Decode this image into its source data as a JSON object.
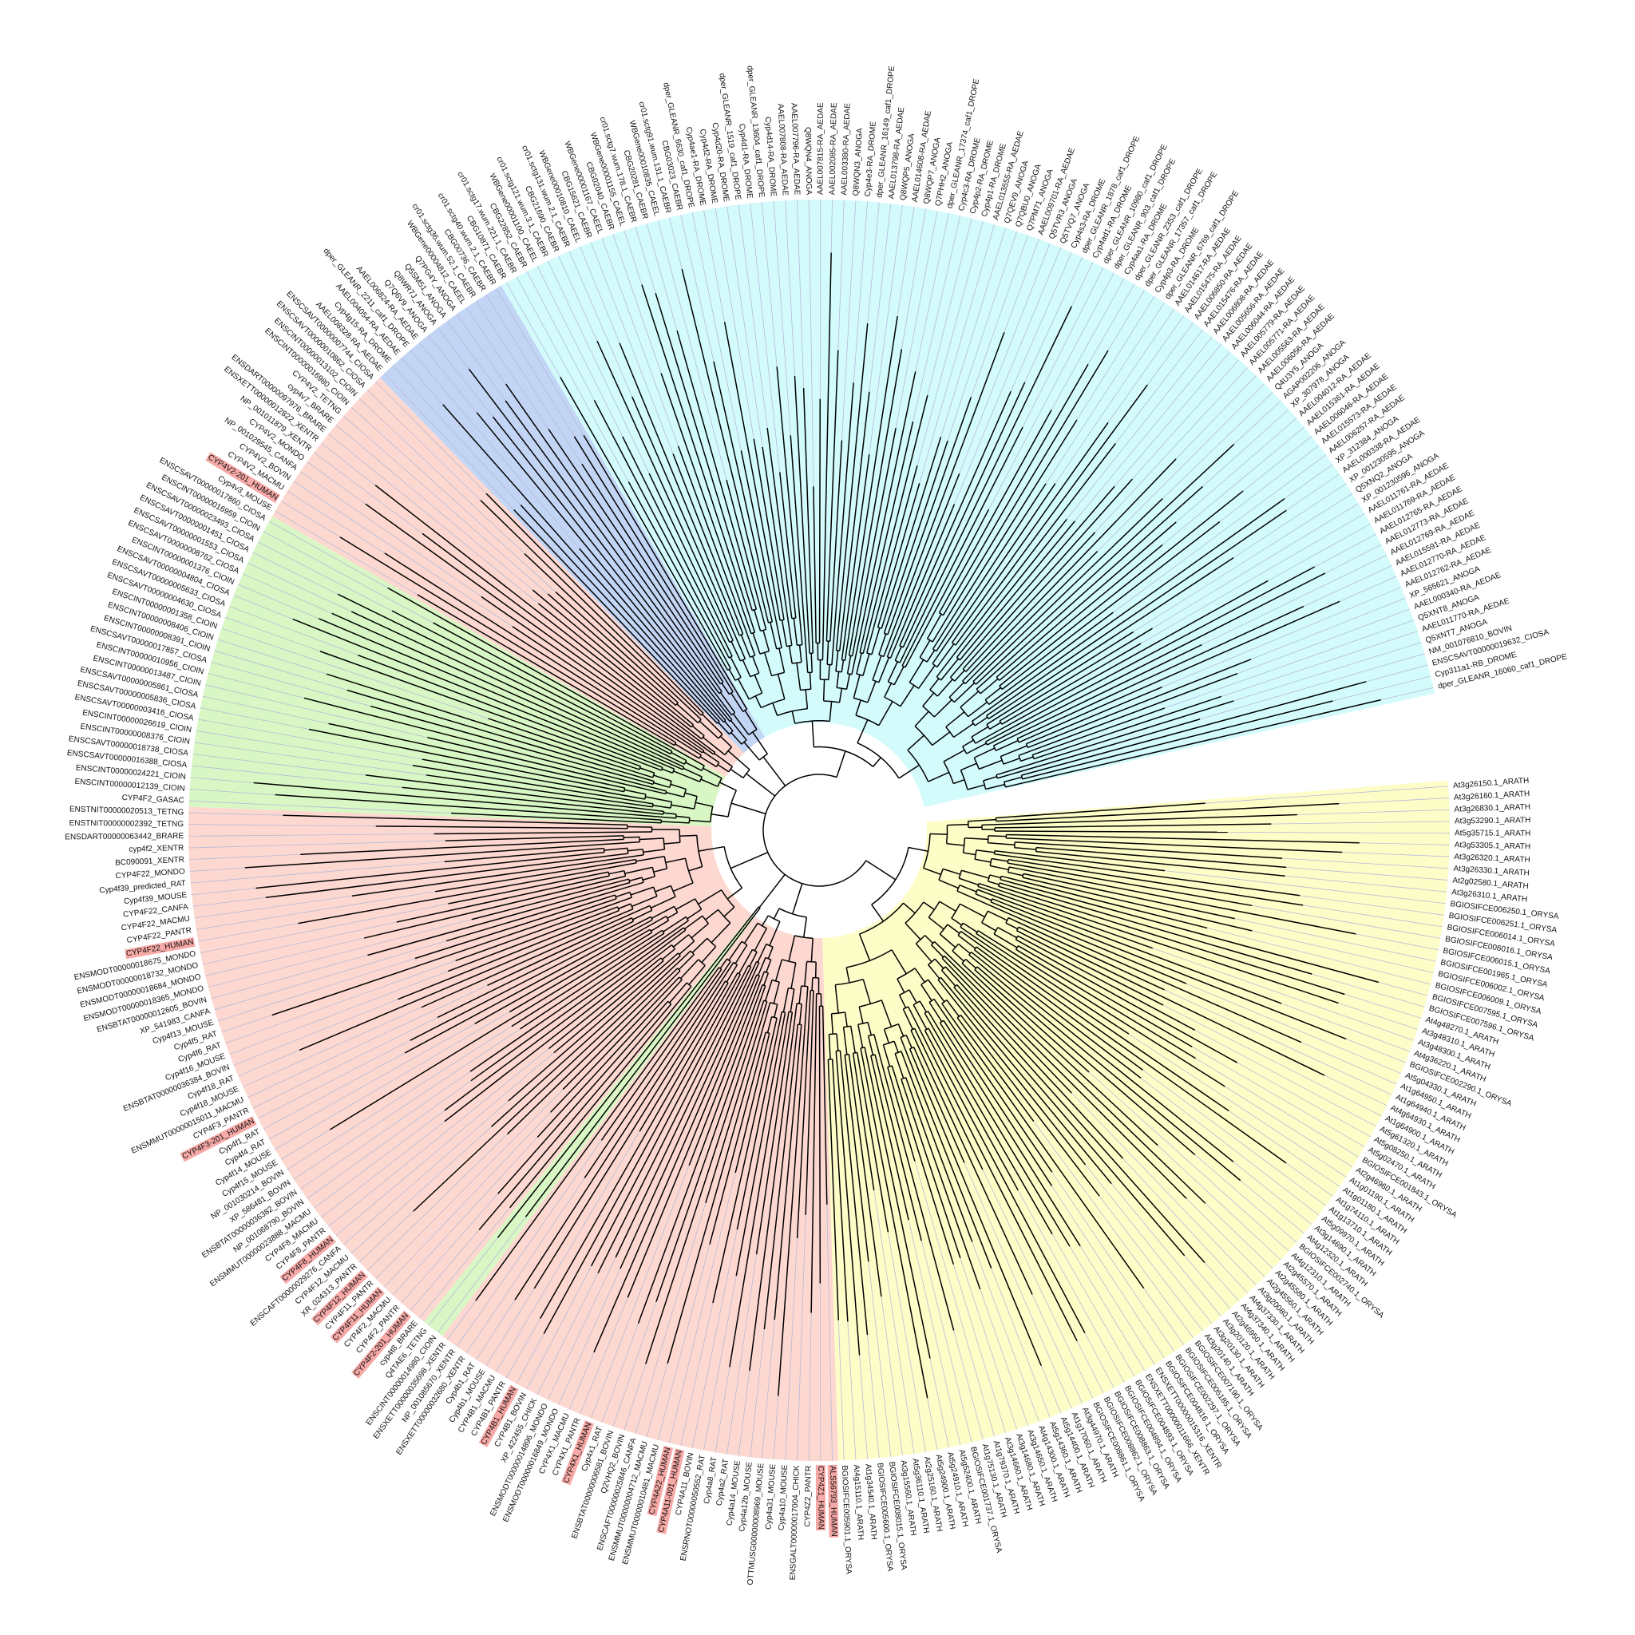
{
  "tree": {
    "clades": [
      {
        "color": "#fdfdc8",
        "leaves": [
          "At3g26150.1_ARATH",
          "At3g26160.1_ARATH",
          "At3g26830.1_ARATH",
          "At3g53290.1_ARATH",
          "At5g35715.1_ARATH",
          "At3g53305.1_ARATH",
          "At3g26320.1_ARATH",
          "At3g26330.1_ARATH",
          "At2g02580.1_ARATH",
          "At3g26310.1_ARATH",
          "BGIOSIFCE006250.1_ORYSA",
          "BGIOSIFCE006251.1_ORYSA",
          "BGIOSIFCE006014.1_ORYSA",
          "BGIOSIFCE006016.1_ORYSA",
          "BGIOSIFCE006015.1_ORYSA",
          "BGIOSIFCE001965.1_ORYSA",
          "BGIOSIFCE006002.1_ORYSA",
          "BGIOSIFCE006009.1_ORYSA",
          "BGIOSIFCE007595.1_ORYSA",
          "BGIOSIFCE007596.1_ORYSA",
          "At4g48270.1_ARATH",
          "At3g48310.1_ARATH",
          "At3g48300.1_ARATH",
          "At4g36220.1_ARATH",
          "BGIOSIFCE002290.1_ORYSA",
          "At5g04330.1_ARATH",
          "At1g64950.1_ARATH",
          "At1g64940.1_ARATH",
          "At4g64930.1_ARATH",
          "At1g64900.1_ARATH",
          "At5g61320.1_ARATH",
          "At5g08250.1_ARATH",
          "At5g02470.1_ARATH",
          "BGIOSIFCE001843.1_ORYSA",
          "At2g46960.1_ARATH",
          "At1g01190.1_ARATH",
          "At1g01180.1_ARATH",
          "At1g74110.1_ARATH",
          "At1g13710.1_ARATH",
          "At5g09970.1_ARATH",
          "At3g14690.1_ARATH",
          "At4g12320.1_ARATH",
          "BGIOSIFCE002740.1_ORYSA",
          "At4g12310.1_ARATH",
          "At2g45570.1_ARATH",
          "At2g45580.1_ARATH",
          "At2g45560.1_ARATH",
          "At3g20080.1_ARATH",
          "At4g37330.1_ARATH",
          "At4g37340.1_ARATH",
          "At2g46950.1_ARATH",
          "At3g20120.1_ARATH",
          "At3g20130.1_ARATH",
          "At3g20140.1_ARATH",
          "BGIOSIFCE007190.1_ORYSA",
          "BGIOSIFCE005185.1_ORYSA",
          "BGIOSIFCE002297.1_ORYSA",
          "BGIOSIFCE004816.1_ORYSA",
          "ENSXETT00000015316_XENTR",
          "ENSXETT00000011666_XENTR",
          "BGIOSIFCE004893.1_ORYSA",
          "BGIOSIFCE004894.1_ORYSA",
          "BGIOSIFCE008863.1_ORYSA",
          "BGIOSIFCE008862.1_ORYSA",
          "BGIOSIFCE008861.1_ORYSA",
          "At3g44970.1_ARATH",
          "At1g17060.1_ARATH",
          "At5g14400.1_ARATH",
          "At5g14360.1_ARATH",
          "At4g14300.1_ARATH",
          "At3g14650.1_ARATH",
          "At3g14680.1_ARATH",
          "At3g14660.1_ARATH",
          "At1g79370.1_ARATH",
          "At1g75130.1_ARATH",
          "BGIOSIFCE001737.1_ORYSA",
          "At5g52400.1_ARATH",
          "At5g24910.1_ARATH",
          "At5g24900.1_ARATH",
          "At2g25160.1_ARATH",
          "At5g36110.1_ARATH",
          "At3g15560.1_ARATH",
          "BGIOSIFCE008015.1_ORYSA",
          "BGIOSIFCE005600.1_ORYSA",
          "At1g34540.1_ARATH",
          "At4g15110.1_ARATH",
          "BGIOSIFCE005901.1_ORYSA"
        ]
      },
      {
        "color": "#fdd8d0",
        "leaves": [
          {
            "label": "ALS56793_HUMAN",
            "highlight": true
          },
          {
            "label": "CYP4Z1_HUMAN",
            "highlight": true
          },
          "CYP4Z2_PANTR",
          "ENSGALT00000017004_CHICK",
          "Cyp4a10_MOUSE",
          "Cyp4a31_MOUSE",
          "OTTMUSG00000008969_MOUSE",
          "Cyp4a12b_MOUSE",
          "Cyp4a14_MOUSE",
          "Cyp4a2_RAT",
          "Cyp4a8_RAT",
          "ENSRNOT00000050552_RAT",
          "CYP4A11_BOVIN",
          {
            "label": "CYP4A11-001_HUMAN",
            "highlight": true
          },
          {
            "label": "CYP4A22_HUMAN",
            "highlight": true
          },
          "ENSMMUT00000010481_MACMU",
          "ENSMMUT00000004712_MACMU",
          "ENSCAFT00000025846_CANFA",
          "Q2VHQ2_BOVIN",
          "ENSBTAT00000006581_BOVIN",
          "Cyp4x1_RAT",
          {
            "label": "CYP4X1_HUMAN",
            "highlight": true
          },
          "CYP4X1_PANTR",
          "CYP4X1_MACMU",
          "ENSMODT00000016849_MONDO",
          "ENSMODT00000014896_MONDO",
          "XP_422455_CHICK",
          "CYP4B1_BOVIN",
          {
            "label": "CYP4B1_HUMAN",
            "highlight": true
          },
          "CYP4B1_PANTR",
          "CYP4B1_MACMU",
          "Cyp4b1_MOUSE",
          "Cyp4b1_RAT",
          "ENSXETT00000032680_XENTR",
          "NP_001085670_XENTR",
          "ENSXETT00000035698_XENTR"
        ]
      },
      {
        "color": "#d8f7c4",
        "leaves": [
          "ENSCINT00000014980_CIOIN",
          "Q4TAE6_TETNG"
        ]
      },
      {
        "color": "#fdd8d0",
        "leaves": [
          "cyp4t8_BRARE",
          {
            "label": "CYP4F2-201_HUMAN",
            "highlight": true
          },
          "CYP4F2_PANTR",
          "CYP4F2_MACMU",
          {
            "label": "CYP4F11_HUMAN",
            "highlight": true
          },
          "CYP4F11_PANTR",
          {
            "label": "CYP4F12_HUMAN",
            "highlight": true
          },
          "XR_024313_PANTR",
          "CYP4F12_MACMU",
          "ENSCAFT00000029276_CANFA",
          {
            "label": "CYP4F8_HUMAN",
            "highlight": true
          },
          "CYP4F8_PANTR",
          "CYP4F8_MACMU",
          "ENSMMUT00000023888_MACMU",
          "NP_001068790_BOVIN",
          "ENSBTAT00000036382_BOVIN",
          "XP_586481_BOVIN",
          "NP_001030214_BOVIN",
          "Cyp4f15_MOUSE",
          "Cyp4f14_MOUSE",
          "Cyp4f4_RAT",
          "Cyp4f1_RAT",
          {
            "label": "CYP4F3-201_HUMAN",
            "highlight": true
          },
          "CYP4F3_PANTR",
          "ENSMMUT00000015011_MACMU",
          "Cyp4f18_MOUSE",
          "Cyp4f18_RAT",
          "ENSBTAT00000036384_BOVIN",
          "Cyp4f16_MOUSE",
          "Cyp4f6_RAT",
          "Cyp4f5_RAT",
          "Cyp4f13_MOUSE",
          "XP_541983_CANFA",
          "ENSBTAT00000012605_BOVIN",
          "ENSMODT00000018365_MONDO",
          "ENSMODT00000018684_MONDO",
          "ENSMODT00000018732_MONDO",
          "ENSMODT00000018675_MONDO",
          {
            "label": "CYP4F22_HUMAN",
            "highlight": true
          },
          "CYP4F22_PANTR",
          "CYP4F22_MACMU",
          "CYP4F22_CANFA",
          "Cyp4f39_MOUSE",
          "Cyp4f39_predicted_RAT",
          "CYP4F22_MONDO",
          "BC090091_XENTR",
          "cyp4f2_XENTR",
          "ENSDART00000063442_BRARE",
          "ENSTNIT00000002392_TETNG",
          "ENSTNIT00000020513_TETNG"
        ]
      },
      {
        "color": "#d8f7c4",
        "leaves": [
          "CYP4F2_GASAC",
          "ENSCINT00000012139_CIOIN",
          "ENSCINT00000024221_CIOIN",
          "ENSCSAVT00000016388_CIOSA",
          "ENSCSAVT00000018738_CIOSA",
          "ENSCINT00000008376_CIOIN",
          "ENSCINT00000026619_CIOIN",
          "ENSCSAVT00000003416_CIOSA",
          "ENSCSAVT00000005836_CIOSA",
          "ENSCSAVT00000005861_CIOSA",
          "ENSCINT00000013487_CIOIN",
          "ENSCINT00000010956_CIOIN",
          "ENSCSAVT00000017857_CIOSA",
          "ENSCINT00000008391_CIOIN",
          "ENSCINT00000008406_CIOIN",
          "ENSCINT00000001358_CIOIN",
          "ENSCSAVT00000004630_CIOSA",
          "ENSCSAVT00000005633_CIOSA",
          "ENSCSAVT00000004804_CIOSA",
          "ENSCINT00000001376_CIOIN",
          "ENSCSAVT00000008762_CIOSA",
          "ENSCSAVT00000001553_CIOSA",
          "ENSCSAVT00000001451_CIOSA",
          "ENSCSAVT00000023493_CIOSA",
          "ENSCINT00000016959_CIOIN",
          "ENSCSAVT00000017860_CIOSA"
        ]
      },
      {
        "color": "#fdd8d0",
        "leaves": [
          "Cyp4v3_MOUSE",
          {
            "label": "CYP4V2-201_HUMAN",
            "highlight": true
          },
          "CYP4V2_MACMU",
          "CYP4V2_BOVIN",
          "NP_001029545_CANFA",
          "CYP4V2_MONDO",
          "NP_001011879_XENTR",
          "ENSXETT00000012822_XENTR",
          "ENSDART00000097976_BRARE",
          "cyp4v7_BRARE",
          "CYP4V2_TETNG",
          "ENSCINT00000016980_CIOIN",
          "ENSCINT00000013102_CIOIN",
          "ENSCSAVT00000010862_CIOSA",
          "ENSCSAVT00000007744_CIOSA"
        ]
      },
      {
        "color": "#c3d5f5",
        "leaves": [
          "AAEL008328-RA_AEDAE",
          "Cyp4g15-RA_DROME",
          "AAEL004054-RA_AEDAE",
          "dper_GLEANR_2211_caf1_DROPE",
          "AAEL006824-RA_AEDAE",
          "Q7Q6V9_ANOGA",
          "Q8WR7J_ANOGA",
          "Q5SM51_ANOGA",
          "Q7PG4Y_ANOGA",
          "WBGene00004812_CAEEL",
          "cr01.sctg36.wum.52.1_CAEBR",
          "CBG00736_CAEBR",
          "cr01.sctg40.wum.2.1_CAEBR"
        ]
      },
      {
        "color": "#d3fbfc",
        "leaves": [
          "CBG10871_CAEBR",
          "cr01.sctg17.wum.221.1_CAEBR",
          "CBG22852_CAEBR",
          "WBGene00001100_CAEEL",
          "cr01.sctg121.wum.3.1_CAEBR",
          "CBG21690_CAEBR",
          "cr01.sctg131.wum.2.1_CAEBR",
          "WBGene00010810_CAEEL",
          "CBG15621_CAEBR",
          "WBGene00001167_CAEEL",
          "CBG02040_CAEBR",
          "WBGene00001155_CAEEL",
          "cr01.sctg7.wum.178.1_CAEBR",
          "CBG20281_CAEBR",
          "WBGene00010835_CAEEL",
          "cr01.sctg91.wum.131.1_CAEBR",
          "CBG03023_CAEBR",
          "dper_GLEANR_6630_caf1_DROPE",
          "Cyp4ae1-RA_DROME",
          "Cyp4d2-RA_DROME",
          "Cyp4d20-RA_DROME",
          "dper_GLEANR_1519_caf1_DROPE",
          "Cyp4d1-RA_DROME",
          "dper_GLEANR_13604_caf1_DROPE",
          "Cyp4d14-RA_DROME",
          "AAEL007808-RA_AEDAE",
          "AAEL007796-RA_AEDAE",
          "Q8WQN4_ANOGA",
          "AAEL007815-RA_AEDAE",
          "AAEL002085-RA_AEDAE",
          "AAEL003380-RA_AEDAE",
          "Q8WQN3_ANOGA",
          "Cyp4e3-RA_DROME",
          "dper_GLEANR_16149_caf1_DROPE",
          "AAEL013798-RA_AEDAE",
          "Q8WQP5_ANOGA",
          "AAEL014608-RA_AEDAE",
          "Q8WQP7_ANOGA",
          "Q7PHH2_ANOGA",
          "dper_GLEANR_17374_caf1_DROPE",
          "Cyp4c3-RA_DROME",
          "Cyp4p2-RA_DROME",
          "Cyp4p1-RA_DROME",
          "AAEL013555-RA_AEDAE",
          "Q7QEV9_ANOGA",
          "Q7QBU0_ANOGA",
          "Q7PM71_ANOGA",
          "AAEL009701-RA_AEDAE",
          "Q5TVR3_ANOGA",
          "Q5TVQ7_ANOGA",
          "Cyp4s3-RA_DROME",
          "dper_GLEANR_1878_caf1_DROPE",
          "Cyp4ad1-RA_DROME",
          "dper_GLEANR_10980_caf1_DROPE",
          "dper_GLEANR_903_caf1_DROPE",
          "Cyp4aa1-RA_DROME",
          "dper_GLEANR_2353_caf1_DROPE",
          "dper_GLEANR_17357_caf1_DROPE",
          "Cyp4p3-RA_DROME",
          "dper_GLEANR_6769_caf1_DROPE",
          "AAEL014617-RA_AEDAE",
          "AAEL015475-RA_AEDAE",
          "AAEL006850-RA_AEDAE",
          "AAEL015476-RA_AEDAE",
          "AAEL006808-RA_AEDAE",
          "AAEL005656-RA_AEDAE",
          "AAEL006044-RA_AEDAE",
          "AAEL005779-RA_AEDAE",
          "AAEL005771-RA_AEDAE",
          "AAEL005563-RA_AEDAE",
          "AAEL006056-RA_AEDAE",
          "Q4U3Y5_ANOGA",
          "AGAP002206_ANOGA",
          "XP_307978_ANOGA",
          "AAEL004012-RA_AEDAE",
          "AAEL015361-RA_AEDAE",
          "AAEL006046-RA_AEDAE",
          "AAEL015573-RA_AEDAE",
          "AAEL006257-RA_AEDAE",
          "XP_312384_ANOGA",
          "AAEL000338-RA_AEDAE",
          "XP_001230595_ANOGA",
          "Q5XNQ2_ANOGA",
          "XP_001230596_ANOGA",
          "AAEL011761-RA_AEDAE",
          "AAEL011769-RA_AEDAE",
          "AAEL012765-RA_AEDAE",
          "AAEL012773-RA_AEDAE",
          "AAEL012769-RA_AEDAE",
          "AAEL015591-RA_AEDAE",
          "AAEL012770-RA_AEDAE",
          "AAEL012762-RA_AEDAE",
          "XP_565621_ANOGA",
          "AAEL000340-RA_AEDAE",
          "Q5XNT8_ANOGA",
          "AAEL011770-RA_AEDAE",
          "Q5XNT7_ANOGA",
          "NM_001076810_BOVIN",
          "ENSCSAVT00000019632_CIOSA",
          "Cyp311a1-RB_DROME",
          "dper_GLEANR_16060_caf1_DROPE"
        ]
      }
    ]
  }
}
